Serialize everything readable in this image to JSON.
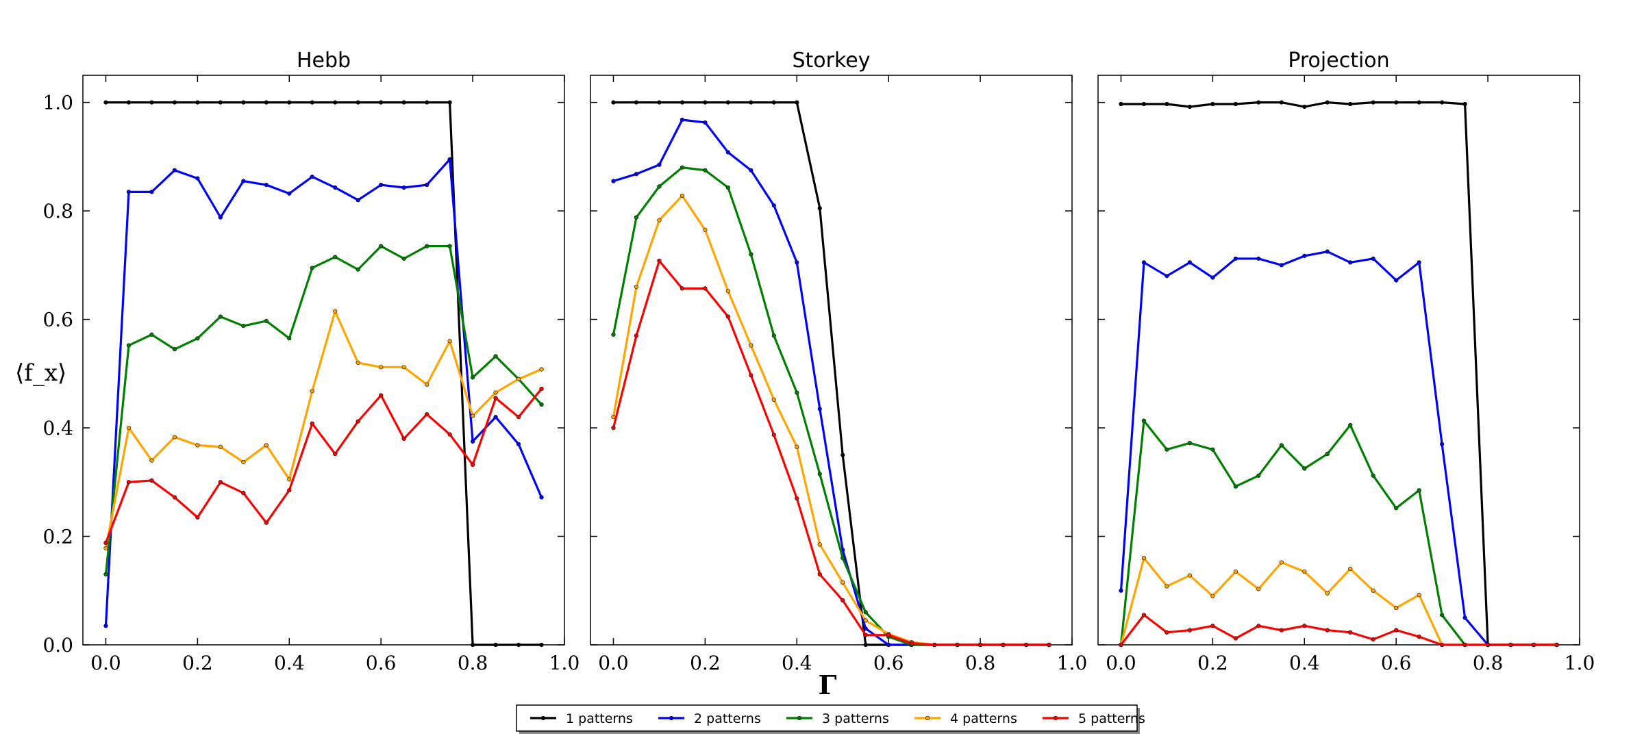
{
  "chart_data": [
    {
      "type": "line",
      "title": "Hebb",
      "xlabel": "",
      "ylabel": "⟨f_x⟩",
      "xlim": [
        -0.05,
        1.0
      ],
      "ylim": [
        0.0,
        1.05
      ],
      "xticks": [
        0.0,
        0.2,
        0.4,
        0.6,
        0.8,
        1.0
      ],
      "xtick_labels": [
        "0.0",
        "0.2",
        "0.4",
        "0.6",
        "0.8",
        "1.0"
      ],
      "yticks": [
        0.0,
        0.2,
        0.4,
        0.6,
        0.8,
        1.0
      ],
      "ytick_labels": [
        "0.0",
        "0.2",
        "0.4",
        "0.6",
        "0.8",
        "1.0"
      ],
      "x": [
        0.0,
        0.05,
        0.1,
        0.15,
        0.2,
        0.25,
        0.3,
        0.35,
        0.4,
        0.45,
        0.5,
        0.55,
        0.6,
        0.65,
        0.7,
        0.75,
        0.8,
        0.85,
        0.9,
        0.95
      ],
      "series": [
        {
          "name": "1 patterns",
          "values": [
            1.0,
            1.0,
            1.0,
            1.0,
            1.0,
            1.0,
            1.0,
            1.0,
            1.0,
            1.0,
            1.0,
            1.0,
            1.0,
            1.0,
            1.0,
            1.0,
            0.0,
            0.0,
            0.0,
            0.0
          ]
        },
        {
          "name": "2 patterns",
          "values": [
            0.035,
            0.835,
            0.835,
            0.875,
            0.86,
            0.788,
            0.855,
            0.848,
            0.832,
            0.863,
            0.843,
            0.82,
            0.848,
            0.843,
            0.848,
            0.895,
            0.375,
            0.42,
            0.37,
            0.272
          ]
        },
        {
          "name": "3 patterns",
          "values": [
            0.13,
            0.552,
            0.572,
            0.545,
            0.565,
            0.605,
            0.588,
            0.597,
            0.565,
            0.695,
            0.715,
            0.692,
            0.735,
            0.712,
            0.735,
            0.735,
            0.493,
            0.532,
            0.49,
            0.443
          ]
        },
        {
          "name": "4 patterns",
          "values": [
            0.178,
            0.4,
            0.34,
            0.383,
            0.368,
            0.365,
            0.337,
            0.368,
            0.305,
            0.468,
            0.615,
            0.52,
            0.512,
            0.512,
            0.48,
            0.56,
            0.422,
            0.465,
            0.49,
            0.508
          ]
        },
        {
          "name": "5 patterns",
          "values": [
            0.188,
            0.3,
            0.303,
            0.272,
            0.235,
            0.3,
            0.28,
            0.225,
            0.285,
            0.408,
            0.352,
            0.412,
            0.46,
            0.38,
            0.425,
            0.388,
            0.332,
            0.455,
            0.42,
            0.472
          ]
        }
      ]
    },
    {
      "type": "line",
      "title": "Storkey",
      "xlabel": "Γ",
      "ylabel": "",
      "xlim": [
        -0.05,
        1.0
      ],
      "ylim": [
        0.0,
        1.05
      ],
      "xticks": [
        0.0,
        0.2,
        0.4,
        0.6,
        0.8,
        1.0
      ],
      "xtick_labels": [
        "0.0",
        "0.2",
        "0.4",
        "0.6",
        "0.8",
        "1.0"
      ],
      "x": [
        0.0,
        0.05,
        0.1,
        0.15,
        0.2,
        0.25,
        0.3,
        0.35,
        0.4,
        0.45,
        0.5,
        0.55,
        0.6,
        0.65,
        0.7,
        0.75,
        0.8,
        0.85,
        0.9,
        0.95
      ],
      "series": [
        {
          "name": "1 patterns",
          "values": [
            1.0,
            1.0,
            1.0,
            1.0,
            1.0,
            1.0,
            1.0,
            1.0,
            1.0,
            0.805,
            0.35,
            0.0,
            0.0,
            0.0,
            0.0,
            0.0,
            0.0,
            0.0,
            0.0,
            0.0
          ]
        },
        {
          "name": "2 patterns",
          "values": [
            0.855,
            0.868,
            0.885,
            0.968,
            0.963,
            0.908,
            0.875,
            0.81,
            0.705,
            0.435,
            0.175,
            0.03,
            0.0,
            0.0,
            0.0,
            0.0,
            0.0,
            0.0,
            0.0,
            0.0
          ]
        },
        {
          "name": "3 patterns",
          "values": [
            0.572,
            0.788,
            0.845,
            0.88,
            0.875,
            0.843,
            0.72,
            0.57,
            0.465,
            0.315,
            0.16,
            0.06,
            0.015,
            0.0,
            0.0,
            0.0,
            0.0,
            0.0,
            0.0,
            0.0
          ]
        },
        {
          "name": "4 patterns",
          "values": [
            0.42,
            0.66,
            0.783,
            0.828,
            0.765,
            0.652,
            0.552,
            0.452,
            0.365,
            0.185,
            0.115,
            0.045,
            0.02,
            0.005,
            0.0,
            0.0,
            0.0,
            0.0,
            0.0,
            0.0
          ]
        },
        {
          "name": "5 patterns",
          "values": [
            0.4,
            0.57,
            0.708,
            0.657,
            0.657,
            0.605,
            0.497,
            0.387,
            0.27,
            0.13,
            0.082,
            0.018,
            0.018,
            0.003,
            0.0,
            0.0,
            0.0,
            0.0,
            0.0,
            0.0
          ]
        }
      ]
    },
    {
      "type": "line",
      "title": "Projection",
      "xlabel": "",
      "ylabel": "",
      "xlim": [
        -0.05,
        1.0
      ],
      "ylim": [
        0.0,
        1.05
      ],
      "xticks": [
        0.0,
        0.2,
        0.4,
        0.6,
        0.8,
        1.0
      ],
      "xtick_labels": [
        "0.0",
        "0.2",
        "0.4",
        "0.6",
        "0.8",
        "1.0"
      ],
      "x": [
        0.0,
        0.05,
        0.1,
        0.15,
        0.2,
        0.25,
        0.3,
        0.35,
        0.4,
        0.45,
        0.5,
        0.55,
        0.6,
        0.65,
        0.7,
        0.75,
        0.8,
        0.85,
        0.9,
        0.95
      ],
      "series": [
        {
          "name": "1 patterns",
          "values": [
            0.997,
            0.997,
            0.997,
            0.992,
            0.997,
            0.997,
            1.0,
            1.0,
            0.992,
            1.0,
            0.997,
            1.0,
            1.0,
            1.0,
            1.0,
            0.997,
            0.0,
            0.0,
            0.0,
            0.0
          ]
        },
        {
          "name": "2 patterns",
          "values": [
            0.1,
            0.705,
            0.68,
            0.705,
            0.677,
            0.712,
            0.712,
            0.7,
            0.717,
            0.725,
            0.705,
            0.712,
            0.672,
            0.705,
            0.37,
            0.05,
            0.0,
            0.0,
            0.0,
            0.0
          ]
        },
        {
          "name": "3 patterns",
          "values": [
            0.0,
            0.413,
            0.36,
            0.372,
            0.36,
            0.292,
            0.312,
            0.368,
            0.325,
            0.352,
            0.405,
            0.312,
            0.252,
            0.285,
            0.055,
            0.0,
            0.0,
            0.0,
            0.0,
            0.0
          ]
        },
        {
          "name": "4 patterns",
          "values": [
            0.0,
            0.16,
            0.108,
            0.128,
            0.09,
            0.135,
            0.103,
            0.152,
            0.135,
            0.095,
            0.14,
            0.1,
            0.068,
            0.092,
            0.0,
            0.0,
            0.0,
            0.0,
            0.0,
            0.0
          ]
        },
        {
          "name": "5 patterns",
          "values": [
            0.0,
            0.055,
            0.023,
            0.027,
            0.035,
            0.012,
            0.035,
            0.027,
            0.035,
            0.027,
            0.023,
            0.01,
            0.027,
            0.015,
            0.0,
            0.0,
            0.0,
            0.0,
            0.0,
            0.0
          ]
        }
      ]
    }
  ],
  "legend": {
    "placement": "bottom-center",
    "items": [
      "1 patterns",
      "2 patterns",
      "3 patterns",
      "4 patterns",
      "5 patterns"
    ]
  },
  "colors": {
    "1 patterns": "#000000",
    "2 patterns": "#0000ff",
    "3 patterns": "#008000",
    "4 patterns": "#ffa500",
    "5 patterns": "#ff0000"
  }
}
